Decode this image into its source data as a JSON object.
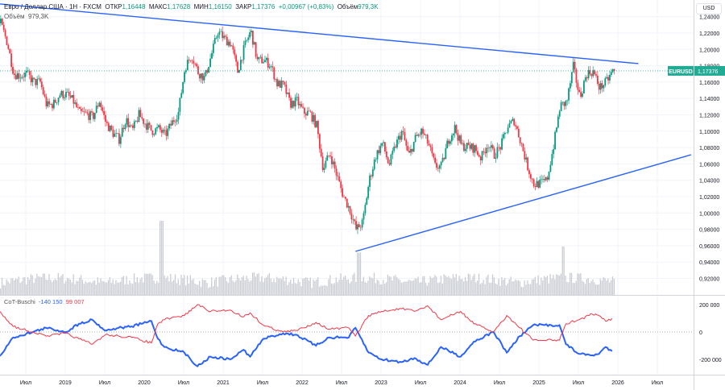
{
  "header": {
    "symbol": "Евро / Доллар США · 1Н · FXCM",
    "open_label": "ОТКР",
    "open": "1,16448",
    "high_label": "МАКС",
    "high": "1,17628",
    "low_label": "МИН",
    "low": "1,16150",
    "close_label": "ЗАКР",
    "close": "1,17376",
    "change": "+0,00967 (+0,83%)",
    "volume_label": "Объём",
    "volume": "979,3K",
    "volume_line_label": "Объём",
    "volume_line_value": "979,3K"
  },
  "axis": {
    "currency": "USD"
  },
  "price_label": {
    "symbol": "EURUSD",
    "value": "1,17376",
    "price": 1.17376
  },
  "cot_legend": {
    "name": "CoT-Buschi",
    "blue_value": "-140 150",
    "red_value": "99 007"
  },
  "colors": {
    "up": "#089981",
    "down": "#f23645",
    "trendline": "#2962ff",
    "cot_blue": "#2962ff",
    "cot_red": "#f23645",
    "price_tag": "#22ab94"
  },
  "chart_data": [
    {
      "type": "candlestick",
      "interval": "1W",
      "ylim": [
        0.9,
        1.245
      ],
      "yticks": [
        "1,24000",
        "1,22000",
        "1,20000",
        "1,18000",
        "1,16000",
        "1,14000",
        "1,12000",
        "1,10000",
        "1,08000",
        "1,06000",
        "1,04000",
        "1,02000",
        "1,00000",
        "0,98000",
        "0,96000",
        "0,94000",
        "0,92000"
      ],
      "xticks": [
        "Июл",
        "2019",
        "Июл",
        "2020",
        "Июл",
        "2021",
        "Июл",
        "2022",
        "Июл",
        "2023",
        "Июл",
        "2024",
        "Июл",
        "2025",
        "Июл",
        "2026",
        "Июл"
      ],
      "monthly_close_approx": {
        "start": "2018-03",
        "values": [
          1.232,
          1.208,
          1.17,
          1.168,
          1.17,
          1.16,
          1.16,
          1.131,
          1.133,
          1.145,
          1.145,
          1.137,
          1.122,
          1.121,
          1.117,
          1.137,
          1.11,
          1.098,
          1.09,
          1.115,
          1.1,
          1.12,
          1.109,
          1.1,
          1.103,
          1.095,
          1.11,
          1.123,
          1.178,
          1.193,
          1.172,
          1.165,
          1.193,
          1.222,
          1.213,
          1.207,
          1.173,
          1.202,
          1.223,
          1.186,
          1.187,
          1.181,
          1.158,
          1.156,
          1.133,
          1.137,
          1.123,
          1.122,
          1.107,
          1.054,
          1.073,
          1.048,
          1.022,
          1.005,
          0.98,
          0.988,
          1.04,
          1.07,
          1.086,
          1.058,
          1.083,
          1.1,
          1.069,
          1.091,
          1.1,
          1.084,
          1.057,
          1.057,
          1.089,
          1.104,
          1.082,
          1.081,
          1.079,
          1.067,
          1.085,
          1.071,
          1.082,
          1.105,
          1.113,
          1.088,
          1.058,
          1.035,
          1.036,
          1.04,
          1.082,
          1.131,
          1.135,
          1.179,
          1.141,
          1.17,
          1.173,
          1.153,
          1.16,
          1.17376
        ]
      },
      "trendlines": [
        {
          "from": [
            "2018-03",
            1.2555
          ],
          "to": [
            "2026-04",
            1.1826
          ]
        },
        {
          "from": [
            "2022-09",
            0.953
          ],
          "to": [
            "2026-12",
            1.0712
          ]
        }
      ],
      "volume_spikes": [
        [
          "2020-03",
          979
        ],
        [
          "2022-09",
          560
        ],
        [
          "2025-04",
          640
        ]
      ]
    },
    {
      "type": "line",
      "title": "CoT-Buschi",
      "ylim": [
        -300000,
        280000
      ],
      "yticks": [
        "200 000",
        "0",
        "-200 000"
      ],
      "series": [
        {
          "color": "#2962ff",
          "points": [
            [
              "2018-03",
              -175000
            ],
            [
              "2018-05",
              -40000
            ],
            [
              "2018-08",
              0
            ],
            [
              "2018-10",
              30000
            ],
            [
              "2019-01",
              0
            ],
            [
              "2019-03",
              60000
            ],
            [
              "2019-05",
              90000
            ],
            [
              "2019-07",
              10000
            ],
            [
              "2019-09",
              30000
            ],
            [
              "2019-11",
              40000
            ],
            [
              "2020-02",
              80000
            ],
            [
              "2020-03",
              -50000
            ],
            [
              "2020-04",
              -110000
            ],
            [
              "2020-07",
              -150000
            ],
            [
              "2020-09",
              -250000
            ],
            [
              "2020-11",
              -180000
            ],
            [
              "2021-02",
              -200000
            ],
            [
              "2021-04",
              -130000
            ],
            [
              "2021-05",
              -180000
            ],
            [
              "2021-07",
              -50000
            ],
            [
              "2021-10",
              -10000
            ],
            [
              "2021-12",
              -20000
            ],
            [
              "2022-03",
              -100000
            ],
            [
              "2022-05",
              -40000
            ],
            [
              "2022-08",
              -40000
            ],
            [
              "2022-09",
              30000
            ],
            [
              "2022-11",
              -150000
            ],
            [
              "2023-01",
              -200000
            ],
            [
              "2023-04",
              -220000
            ],
            [
              "2023-06",
              -190000
            ],
            [
              "2023-08",
              -240000
            ],
            [
              "2023-10",
              -110000
            ],
            [
              "2024-01",
              -180000
            ],
            [
              "2024-03",
              -70000
            ],
            [
              "2024-06",
              0
            ],
            [
              "2024-08",
              -150000
            ],
            [
              "2024-10",
              -30000
            ],
            [
              "2024-12",
              50000
            ],
            [
              "2025-04",
              50000
            ],
            [
              "2025-05",
              -90000
            ],
            [
              "2025-07",
              -160000
            ],
            [
              "2025-09",
              -170000
            ],
            [
              "2025-10",
              -160000
            ],
            [
              "2025-11",
              -110000
            ],
            [
              "2025-12",
              -140150
            ]
          ]
        },
        {
          "color": "#f23645",
          "points": [
            [
              "2018-03",
              150000
            ],
            [
              "2018-05",
              40000
            ],
            [
              "2018-08",
              0
            ],
            [
              "2018-10",
              -30000
            ],
            [
              "2019-01",
              -10000
            ],
            [
              "2019-03",
              -50000
            ],
            [
              "2019-05",
              -90000
            ],
            [
              "2019-07",
              -20000
            ],
            [
              "2019-09",
              -30000
            ],
            [
              "2019-11",
              -40000
            ],
            [
              "2020-02",
              -80000
            ],
            [
              "2020-03",
              60000
            ],
            [
              "2020-04",
              90000
            ],
            [
              "2020-07",
              120000
            ],
            [
              "2020-09",
              200000
            ],
            [
              "2020-11",
              150000
            ],
            [
              "2021-02",
              160000
            ],
            [
              "2021-04",
              110000
            ],
            [
              "2021-05",
              140000
            ],
            [
              "2021-07",
              50000
            ],
            [
              "2021-10",
              0
            ],
            [
              "2021-12",
              10000
            ],
            [
              "2022-03",
              70000
            ],
            [
              "2022-05",
              20000
            ],
            [
              "2022-08",
              30000
            ],
            [
              "2022-09",
              -30000
            ],
            [
              "2022-11",
              120000
            ],
            [
              "2023-01",
              150000
            ],
            [
              "2023-04",
              170000
            ],
            [
              "2023-06",
              150000
            ],
            [
              "2023-08",
              190000
            ],
            [
              "2023-10",
              90000
            ],
            [
              "2024-01",
              150000
            ],
            [
              "2024-03",
              60000
            ],
            [
              "2024-06",
              0
            ],
            [
              "2024-08",
              120000
            ],
            [
              "2024-10",
              30000
            ],
            [
              "2024-12",
              -60000
            ],
            [
              "2025-04",
              -60000
            ],
            [
              "2025-05",
              60000
            ],
            [
              "2025-07",
              90000
            ],
            [
              "2025-09",
              130000
            ],
            [
              "2025-10",
              120000
            ],
            [
              "2025-11",
              80000
            ],
            [
              "2025-12",
              99007
            ]
          ]
        }
      ]
    }
  ]
}
